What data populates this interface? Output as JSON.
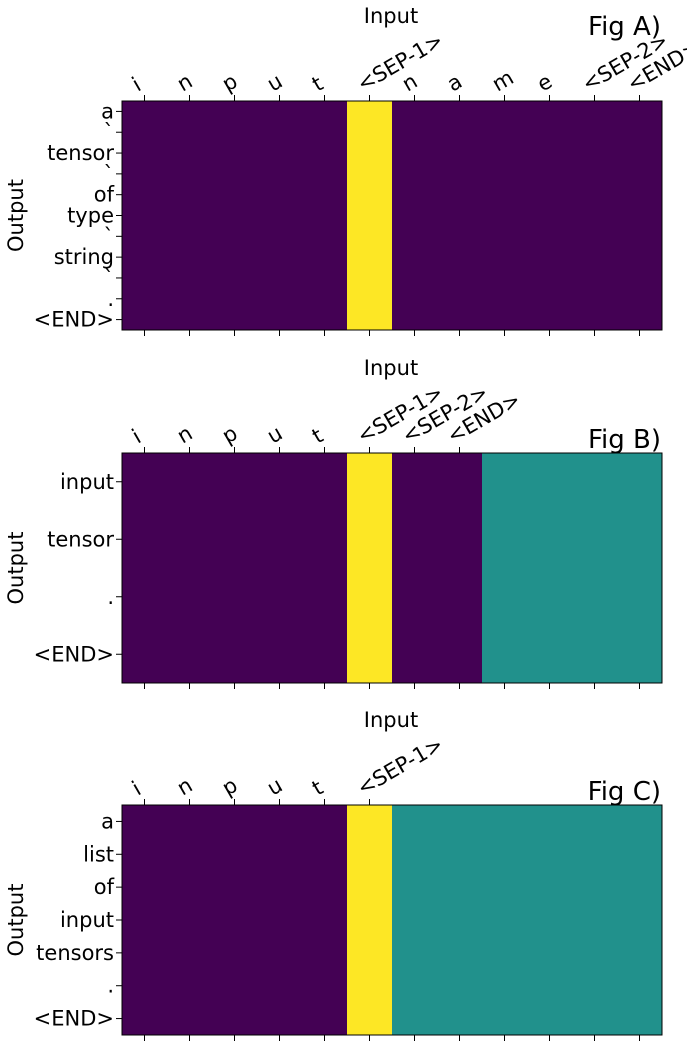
{
  "chart_data": [
    {
      "type": "heatmap",
      "title": "Fig A)",
      "xlabel": "Input",
      "ylabel": "Output",
      "x_categories": [
        "i",
        "n",
        "p",
        "u",
        "t",
        "<SEP-1>",
        "n",
        "a",
        "m",
        "e",
        "<SEP-2>",
        "<END>"
      ],
      "y_categories": [
        "a",
        "`",
        "tensor",
        "`",
        "of",
        "type",
        "`",
        "string",
        "`",
        ".",
        "<END>"
      ],
      "values": [
        [
          0,
          0,
          0,
          0,
          0,
          1,
          0,
          0,
          0,
          0,
          0,
          0
        ],
        [
          0,
          0,
          0,
          0,
          0,
          1,
          0,
          0,
          0,
          0,
          0,
          0
        ],
        [
          0,
          0,
          0,
          0,
          0,
          1,
          0,
          0,
          0,
          0,
          0,
          0
        ],
        [
          0,
          0,
          0,
          0,
          0,
          1,
          0,
          0,
          0,
          0,
          0,
          0
        ],
        [
          0,
          0,
          0,
          0,
          0,
          1,
          0,
          0,
          0,
          0,
          0,
          0
        ],
        [
          0,
          0,
          0,
          0,
          0,
          1,
          0,
          0,
          0,
          0,
          0,
          0
        ],
        [
          0,
          0,
          0,
          0,
          0,
          1,
          0,
          0,
          0,
          0,
          0,
          0
        ],
        [
          0,
          0,
          0,
          0,
          0,
          1,
          0,
          0,
          0,
          0,
          0,
          0
        ],
        [
          0,
          0,
          0,
          0,
          0,
          1,
          0,
          0,
          0,
          0,
          0,
          0
        ],
        [
          0,
          0,
          0,
          0,
          0,
          1,
          0,
          0,
          0,
          0,
          0,
          0
        ],
        [
          0,
          0,
          0,
          0,
          0,
          1,
          0,
          0,
          0,
          0,
          0,
          0
        ]
      ]
    },
    {
      "type": "heatmap",
      "title": "Fig B)",
      "xlabel": "Input",
      "ylabel": "Output",
      "x_categories": [
        "i",
        "n",
        "p",
        "u",
        "t",
        "<SEP-1>",
        "<SEP-2>",
        "<END>",
        "",
        "",
        "",
        ""
      ],
      "y_categories": [
        "input",
        "tensor",
        ".",
        "<END>"
      ],
      "values": [
        [
          0,
          0,
          0,
          0,
          0,
          1,
          0,
          0,
          null,
          null,
          null,
          null
        ],
        [
          0,
          0,
          0,
          0,
          0,
          1,
          0,
          0,
          null,
          null,
          null,
          null
        ],
        [
          0,
          0,
          0,
          0,
          0,
          1,
          0,
          0,
          null,
          null,
          null,
          null
        ],
        [
          0,
          0,
          0,
          0,
          0,
          1,
          0,
          0,
          null,
          null,
          null,
          null
        ]
      ]
    },
    {
      "type": "heatmap",
      "title": "Fig C)",
      "xlabel": "Input",
      "ylabel": "Output",
      "x_categories": [
        "i",
        "n",
        "p",
        "u",
        "t",
        "<SEP-1>",
        "",
        "",
        "",
        "",
        "",
        ""
      ],
      "y_categories": [
        "a",
        "list",
        "of",
        "input",
        "tensors",
        ".",
        "<END>"
      ],
      "values": [
        [
          0,
          0,
          0,
          0,
          0,
          1,
          null,
          null,
          null,
          null,
          null,
          null
        ],
        [
          0,
          0,
          0,
          0,
          0,
          1,
          null,
          null,
          null,
          null,
          null,
          null
        ],
        [
          0,
          0,
          0,
          0,
          0,
          1,
          null,
          null,
          null,
          null,
          null,
          null
        ],
        [
          0,
          0,
          0,
          0,
          0,
          1,
          null,
          null,
          null,
          null,
          null,
          null
        ],
        [
          0,
          0,
          0,
          0,
          0,
          1,
          null,
          null,
          null,
          null,
          null,
          null
        ],
        [
          0,
          0,
          0,
          0,
          0,
          1,
          null,
          null,
          null,
          null,
          null,
          null
        ],
        [
          0,
          0,
          0,
          0,
          0,
          1,
          null,
          null,
          null,
          null,
          null,
          null
        ]
      ]
    }
  ],
  "colors": {
    "low": "#440154",
    "high": "#fde725",
    "padding": "#21918c"
  }
}
